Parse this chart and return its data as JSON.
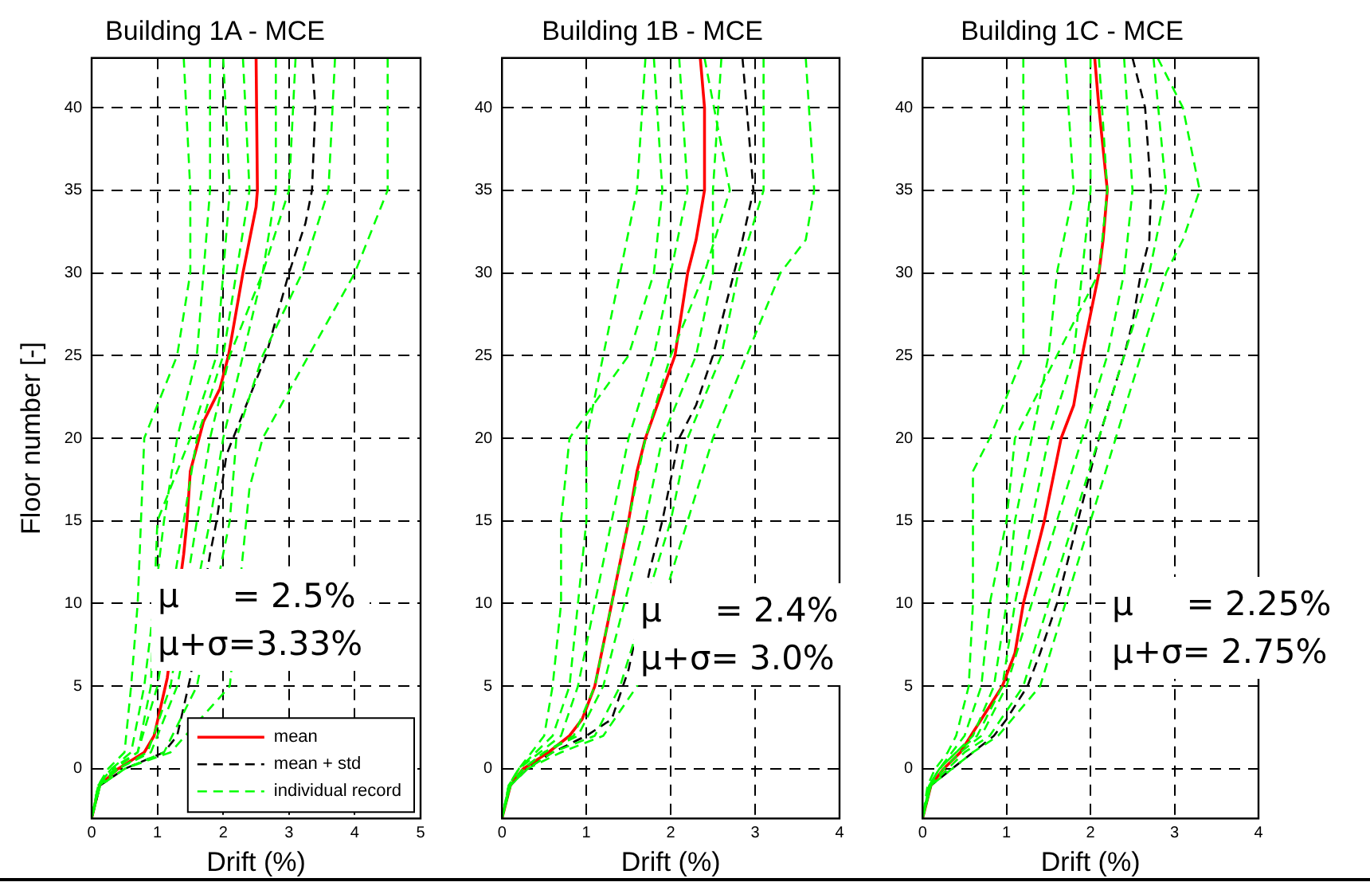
{
  "chart_data": [
    {
      "type": "line",
      "title": "Building 1A - MCE",
      "xlabel": "Drift (%)",
      "ylabel": "Floor number [-]",
      "xlim": [
        0,
        5
      ],
      "xticks": [
        0,
        1,
        2,
        3,
        4,
        5
      ],
      "ylim": [
        -3,
        43
      ],
      "yticks": [
        0,
        5,
        10,
        15,
        20,
        25,
        30,
        35,
        40
      ],
      "grid": true,
      "legend": "bottom right",
      "annotations": [
        "μ     = 2.5%",
        "μ+σ=3.33%"
      ],
      "series": [
        {
          "name": "individual record",
          "color": "#00ff00",
          "line_style": "dashed",
          "x": [
            4.5,
            4.5,
            4.0,
            3.3,
            2.6,
            2.4,
            2.3,
            2.1,
            1.2,
            0.5,
            0.13,
            0
          ],
          "values": [
            43,
            35,
            30,
            25,
            20,
            17,
            13,
            5,
            1,
            0,
            -1,
            -3
          ]
        },
        {
          "color": "#00ff00",
          "line_style": "dashed",
          "x": [
            3.7,
            3.6,
            3.2,
            2.6,
            2.2,
            2.1,
            2.0,
            1.6,
            1.1,
            0.5,
            0.13,
            0
          ],
          "values": [
            43,
            35,
            30,
            25,
            20,
            15,
            13,
            5,
            1,
            0,
            -1,
            -3
          ]
        },
        {
          "color": "#00ff00",
          "line_style": "dashed",
          "x": [
            2.8,
            2.8,
            2.6,
            2.3,
            2.0,
            1.8,
            1.3,
            0.9,
            0.4,
            0.12,
            0
          ],
          "values": [
            43,
            35,
            30,
            25,
            20,
            15,
            5,
            1,
            0,
            -1,
            -3
          ]
        },
        {
          "color": "#00ff00",
          "line_style": "dashed",
          "x": [
            2.3,
            2.4,
            2.2,
            2.0,
            1.6,
            1.4,
            1.0,
            0.7,
            0.35,
            0.1,
            0
          ],
          "values": [
            43,
            35,
            30,
            25,
            20,
            15,
            5,
            1,
            0,
            -1,
            -3
          ]
        },
        {
          "color": "#00ff00",
          "line_style": "dashed",
          "x": [
            1.8,
            1.8,
            1.7,
            1.6,
            1.3,
            1.1,
            0.8,
            0.6,
            0.3,
            0.1,
            0
          ],
          "values": [
            43,
            35,
            30,
            25,
            20,
            15,
            5,
            1,
            0,
            -1,
            -3
          ]
        },
        {
          "color": "#00ff00",
          "line_style": "dashed",
          "x": [
            1.4,
            1.5,
            1.5,
            1.3,
            0.8,
            0.75,
            0.7,
            0.6,
            0.5,
            0.25,
            0.1,
            0
          ],
          "values": [
            43,
            35,
            30,
            25,
            20,
            15,
            10,
            5,
            1,
            0,
            -1,
            -3
          ]
        },
        {
          "color": "#00ff00",
          "line_style": "dashed",
          "x": [
            3.1,
            3.0,
            2.6,
            2.1,
            1.8,
            1.6,
            1.2,
            0.85,
            0.4,
            0.12,
            0
          ],
          "values": [
            43,
            35,
            30,
            25,
            20,
            15,
            5,
            1,
            0,
            -1,
            -3
          ]
        },
        {
          "color": "#00ff00",
          "line_style": "dashed",
          "x": [
            2.0,
            2.1,
            2.0,
            1.9,
            1.5,
            1.0,
            0.9,
            0.7,
            0.3,
            0.1,
            0
          ],
          "values": [
            43,
            35,
            30,
            25,
            20,
            15,
            5,
            1,
            0,
            -1,
            -3
          ]
        },
        {
          "name": "mean + std",
          "color": "#000000",
          "line_style": "dashed",
          "x": [
            3.35,
            3.4,
            3.35,
            3.25,
            3.0,
            2.65,
            2.35,
            2.05,
            1.9,
            1.8,
            1.5,
            1.3,
            1.1,
            0.5,
            0.13,
            0
          ],
          "values": [
            43,
            40,
            35,
            33,
            30,
            25,
            22,
            19,
            15,
            13,
            5.5,
            2,
            1,
            0,
            -1,
            -3
          ]
        },
        {
          "name": "mean",
          "color": "#ff0000",
          "line_style": "solid",
          "x": [
            2.5,
            2.52,
            2.5,
            2.3,
            2.08,
            1.95,
            1.7,
            1.5,
            1.45,
            1.4,
            1.15,
            0.95,
            0.8,
            0.4,
            0.12,
            0
          ],
          "values": [
            43,
            35,
            34,
            30,
            25,
            23,
            21,
            18,
            15,
            13,
            5.5,
            2,
            1,
            0,
            -1,
            -3
          ]
        }
      ]
    },
    {
      "type": "line",
      "title": "Building 1B - MCE",
      "xlabel": "Drift (%)",
      "xlim": [
        0,
        4
      ],
      "xticks": [
        0,
        1,
        2,
        3,
        4
      ],
      "ylim": [
        -3,
        43
      ],
      "yticks": [
        0,
        5,
        10,
        15,
        20,
        25,
        30,
        35,
        40
      ],
      "grid": true,
      "annotations": [
        "μ     = 2.4%",
        "μ+σ= 3.0%"
      ],
      "series": [
        {
          "color": "#00ff00",
          "line_style": "dashed",
          "x": [
            3.6,
            3.7,
            3.6,
            3.3,
            2.9,
            2.5,
            2.2,
            1.6,
            1.2,
            0.7,
            0.3,
            0.1,
            0
          ],
          "values": [
            43,
            35,
            32,
            30,
            25,
            20,
            15,
            5,
            2,
            1,
            0,
            -1,
            -3
          ]
        },
        {
          "color": "#00ff00",
          "line_style": "dashed",
          "x": [
            3.1,
            3.1,
            2.8,
            2.6,
            2.2,
            2.0,
            1.4,
            1.1,
            0.6,
            0.3,
            0.1,
            0
          ],
          "values": [
            43,
            35,
            30,
            25,
            20,
            15,
            5,
            2,
            1,
            0,
            -1,
            -3
          ]
        },
        {
          "color": "#00ff00",
          "line_style": "dashed",
          "x": [
            2.6,
            2.5,
            2.5,
            2.3,
            1.9,
            1.7,
            1.2,
            0.9,
            0.5,
            0.25,
            0.1,
            0
          ],
          "values": [
            43,
            35,
            30,
            25,
            20,
            15,
            5,
            2,
            1,
            0,
            -1,
            -3
          ]
        },
        {
          "color": "#00ff00",
          "line_style": "dashed",
          "x": [
            2.1,
            2.2,
            2.0,
            1.8,
            1.5,
            1.3,
            1.1,
            0.9,
            0.7,
            0.45,
            0.2,
            0.08,
            0
          ],
          "values": [
            43,
            35,
            30,
            25,
            20,
            15,
            10,
            5,
            2,
            1,
            0,
            -1,
            -3
          ]
        },
        {
          "color": "#00ff00",
          "line_style": "dashed",
          "x": [
            1.7,
            1.6,
            1.4,
            1.2,
            1.0,
            1.0,
            0.9,
            0.8,
            0.6,
            0.4,
            0.2,
            0.08,
            0
          ],
          "values": [
            43,
            35,
            30,
            25,
            20,
            15,
            10,
            5,
            2,
            1,
            0,
            -1,
            -3
          ]
        },
        {
          "color": "#00ff00",
          "line_style": "dashed",
          "x": [
            1.8,
            1.9,
            1.8,
            1.5,
            0.8,
            0.7,
            0.7,
            0.6,
            0.5,
            0.35,
            0.2,
            0.08,
            0
          ],
          "values": [
            43,
            35,
            30,
            25,
            20,
            15,
            10,
            5,
            2,
            1,
            0,
            -1,
            -3
          ]
        },
        {
          "color": "#00ff00",
          "line_style": "dashed",
          "x": [
            2.4,
            2.7,
            2.4,
            2.0,
            1.7,
            1.5,
            1.3,
            1.1,
            0.85,
            0.5,
            0.25,
            0.1,
            0
          ],
          "values": [
            43,
            35,
            30,
            25,
            20,
            15,
            10,
            5,
            2,
            1,
            0,
            -1,
            -3
          ]
        },
        {
          "color": "#000000",
          "line_style": "dashed",
          "x": [
            2.85,
            2.9,
            2.98,
            2.85,
            2.75,
            2.5,
            2.3,
            2.1,
            1.9,
            1.75,
            1.5,
            1.3,
            1.0,
            0.6,
            0.3,
            0.1,
            0
          ],
          "values": [
            43,
            40,
            35,
            32,
            30,
            25,
            22,
            20,
            15,
            12,
            6,
            3,
            2,
            1,
            0,
            -1,
            -3
          ]
        },
        {
          "color": "#ff0000",
          "line_style": "solid",
          "x": [
            2.35,
            2.4,
            2.4,
            2.3,
            2.2,
            2.05,
            1.7,
            1.6,
            1.5,
            1.3,
            1.1,
            0.95,
            0.8,
            0.55,
            0.25,
            0.1,
            0
          ],
          "values": [
            43,
            40,
            35,
            32,
            30,
            25,
            20,
            18,
            15,
            10,
            5,
            3,
            2,
            1,
            0,
            -1,
            -3
          ]
        }
      ]
    },
    {
      "type": "line",
      "title": "Building 1C - MCE",
      "xlabel": "Drift (%)",
      "xlim": [
        0,
        4
      ],
      "xticks": [
        0,
        1,
        2,
        3,
        4
      ],
      "ylim": [
        -3,
        43
      ],
      "yticks": [
        0,
        5,
        10,
        15,
        20,
        25,
        30,
        35,
        40
      ],
      "grid": true,
      "annotations": [
        "μ     = 2.25%",
        "μ+σ= 2.75%"
      ],
      "series": [
        {
          "color": "#00ff00",
          "line_style": "dashed",
          "x": [
            2.8,
            3.1,
            3.3,
            3.1,
            2.9,
            2.6,
            2.3,
            2.0,
            1.7,
            1.4,
            0.9,
            0.6,
            0.35,
            0.1,
            0
          ],
          "values": [
            43,
            40,
            35,
            32,
            30,
            25,
            20,
            15,
            10,
            5,
            2,
            1,
            0,
            -1,
            -3
          ]
        },
        {
          "color": "#00ff00",
          "line_style": "dashed",
          "x": [
            2.75,
            2.9,
            2.7,
            2.4,
            2.1,
            1.8,
            1.5,
            1.2,
            0.8,
            0.5,
            0.3,
            0.1,
            0
          ],
          "values": [
            43,
            35,
            30,
            25,
            20,
            15,
            10,
            5,
            2,
            1,
            0,
            -1,
            -3
          ]
        },
        {
          "color": "#00ff00",
          "line_style": "dashed",
          "x": [
            2.4,
            2.5,
            2.4,
            2.2,
            1.9,
            1.6,
            1.3,
            1.0,
            0.7,
            0.45,
            0.25,
            0.1,
            0
          ],
          "values": [
            43,
            35,
            30,
            25,
            20,
            15,
            10,
            5,
            2,
            1,
            0,
            -1,
            -3
          ]
        },
        {
          "color": "#00ff00",
          "line_style": "dashed",
          "x": [
            1.7,
            1.8,
            1.6,
            1.5,
            1.3,
            1.1,
            1.0,
            0.85,
            0.6,
            0.4,
            0.2,
            0.08,
            0
          ],
          "values": [
            43,
            35,
            30,
            25,
            20,
            15,
            10,
            5,
            2,
            1,
            0,
            -1,
            -3
          ]
        },
        {
          "color": "#00ff00",
          "line_style": "dashed",
          "x": [
            1.2,
            1.2,
            1.2,
            1.2,
            0.8,
            0.6,
            0.6,
            0.6,
            0.55,
            0.4,
            0.3,
            0.15,
            0.06,
            0
          ],
          "values": [
            43,
            35,
            30,
            25,
            20,
            18,
            15,
            10,
            5,
            2,
            1,
            0,
            -1,
            -3
          ]
        },
        {
          "color": "#00ff00",
          "line_style": "dashed",
          "x": [
            2.0,
            2.0,
            1.9,
            1.8,
            1.5,
            1.3,
            1.1,
            0.95,
            0.65,
            0.4,
            0.2,
            0.08,
            0
          ],
          "values": [
            43,
            35,
            30,
            25,
            20,
            15,
            10,
            5,
            2,
            1,
            0,
            -1,
            -3
          ]
        },
        {
          "color": "#00ff00",
          "line_style": "dashed",
          "x": [
            2.1,
            2.2,
            2.1,
            1.6,
            1.1,
            1.0,
            0.8,
            0.7,
            0.5,
            0.35,
            0.2,
            0.08,
            0
          ],
          "values": [
            43,
            35,
            30,
            25,
            20,
            15,
            10,
            5,
            2,
            1,
            0,
            -1,
            -3
          ]
        },
        {
          "color": "#000000",
          "line_style": "dashed",
          "x": [
            2.5,
            2.65,
            2.72,
            2.7,
            2.6,
            2.5,
            2.4,
            2.1,
            1.85,
            1.7,
            1.6,
            1.4,
            1.25,
            1.0,
            0.85,
            0.6,
            0.35,
            0.1,
            0
          ],
          "values": [
            43,
            40,
            35,
            32,
            30,
            27,
            25,
            20,
            15,
            12,
            10,
            7,
            5,
            3,
            2,
            1,
            0,
            -1,
            -3
          ]
        },
        {
          "color": "#ff0000",
          "line_style": "solid",
          "x": [
            2.05,
            2.1,
            2.2,
            2.15,
            2.1,
            1.9,
            1.8,
            1.65,
            1.45,
            1.3,
            1.2,
            1.1,
            0.95,
            0.7,
            0.45,
            0.25,
            0.1,
            0
          ],
          "values": [
            43,
            40,
            35,
            32,
            30,
            25,
            22,
            20,
            15,
            12,
            10,
            7,
            5,
            3,
            1,
            0,
            -1,
            -3
          ]
        }
      ]
    }
  ]
}
